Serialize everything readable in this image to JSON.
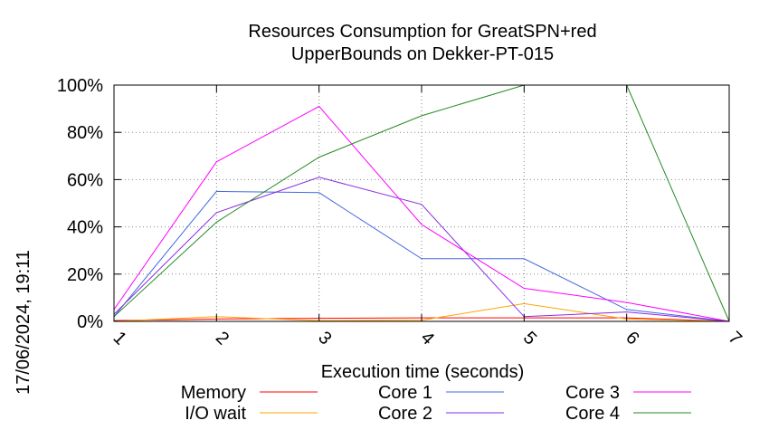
{
  "chart_data": {
    "type": "line",
    "title": "Resources Consumption for GreatSPN+red",
    "subtitle": "UpperBounds on Dekker-PT-015",
    "xlabel": "Execution time (seconds)",
    "ylabel": "",
    "timestamp": "17/06/2024, 19:11",
    "x": [
      1,
      2,
      3,
      4,
      5,
      6,
      7
    ],
    "x_tick_labels": [
      "1",
      "2",
      "3",
      "4",
      "5",
      "6",
      "7"
    ],
    "y_tick_labels": [
      "0%",
      "20%",
      "40%",
      "60%",
      "80%",
      "100%"
    ],
    "xlim": [
      1,
      7
    ],
    "ylim": [
      0,
      100
    ],
    "grid": true,
    "legend_position": "bottom",
    "series": [
      {
        "name": "Memory",
        "color": "#ff0000",
        "values": [
          0.3,
          1.0,
          1.3,
          1.5,
          1.5,
          1.5,
          0.0
        ]
      },
      {
        "name": "I/O wait",
        "color": "#ffa500",
        "values": [
          0.0,
          2.0,
          0.3,
          0.5,
          7.5,
          1.0,
          0.0
        ]
      },
      {
        "name": "Core 1",
        "color": "#4169e1",
        "values": [
          2.0,
          55.0,
          54.5,
          26.5,
          26.5,
          5.0,
          0.0
        ]
      },
      {
        "name": "Core 2",
        "color": "#8a2be2",
        "values": [
          3.0,
          46.0,
          61.0,
          49.5,
          2.0,
          4.0,
          0.0
        ]
      },
      {
        "name": "Core 3",
        "color": "#ff00ff",
        "values": [
          5.0,
          67.5,
          91.0,
          41.0,
          14.0,
          8.0,
          0.0
        ]
      },
      {
        "name": "Core 4",
        "color": "#228b22",
        "values": [
          2.0,
          42.0,
          69.5,
          87.0,
          100.0,
          100.0,
          0.0
        ]
      }
    ]
  }
}
